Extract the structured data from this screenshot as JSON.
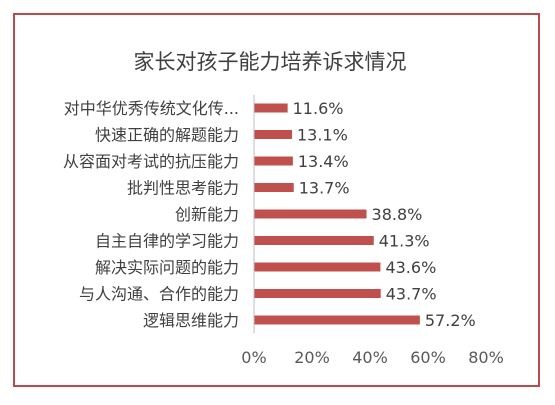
{
  "chart_data": {
    "type": "bar",
    "orientation": "horizontal",
    "title": "家长对孩子能力培养诉求情况",
    "categories": [
      "对中华优秀传统文化传...",
      "快速正确的解题能力",
      "从容面对考试的抗压能力",
      "批判性思考能力",
      "创新能力",
      "自主自律的学习能力",
      "解决实际问题的能力",
      "与人沟通、合作的能力",
      "逻辑思维能力"
    ],
    "values": [
      11.6,
      13.1,
      13.4,
      13.7,
      38.8,
      41.3,
      43.6,
      43.7,
      57.2
    ],
    "value_labels": [
      "11.6%",
      "13.1%",
      "13.4%",
      "13.7%",
      "38.8%",
      "41.3%",
      "43.6%",
      "43.7%",
      "57.2%"
    ],
    "xlim": [
      0,
      80
    ],
    "x_ticks": [
      0,
      20,
      40,
      60,
      80
    ],
    "x_tick_labels": [
      "0%",
      "20%",
      "40%",
      "60%",
      "80%"
    ],
    "grid": false,
    "bar_color": "#c0504d",
    "frame_color": "#c04a4a"
  }
}
